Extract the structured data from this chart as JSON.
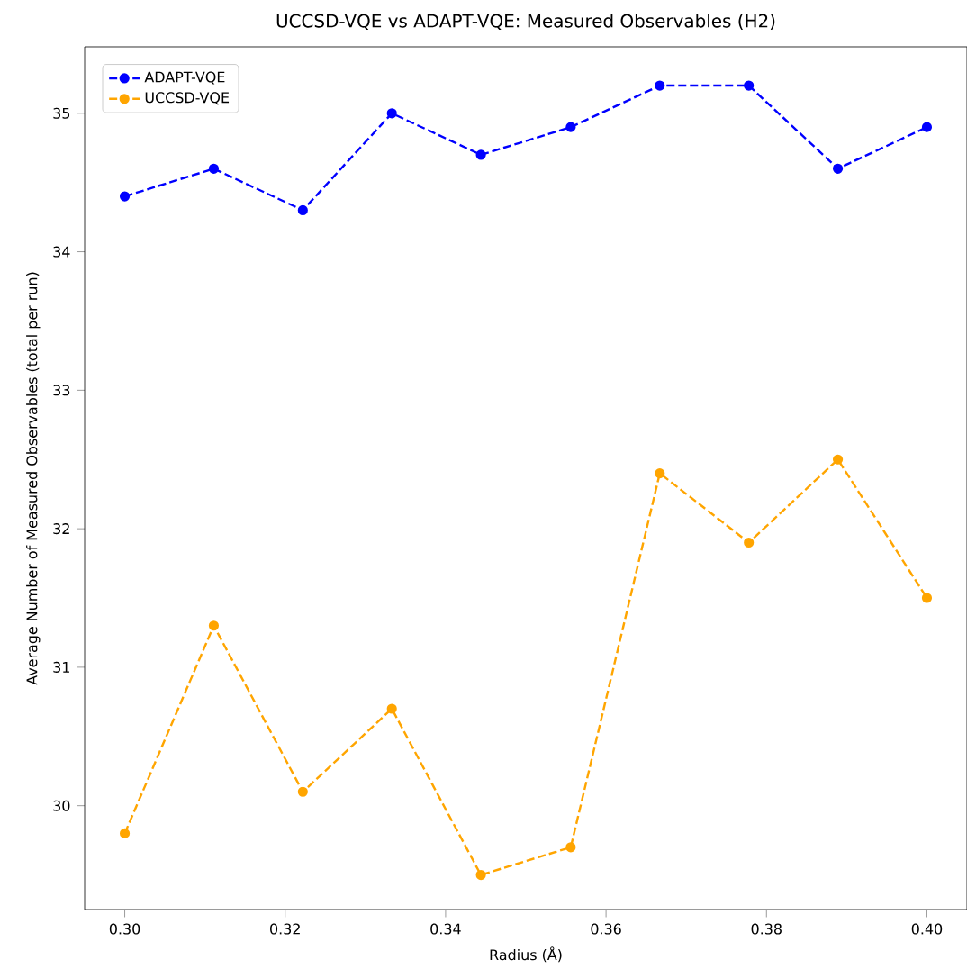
{
  "chart_data": {
    "type": "line",
    "title": "UCCSD-VQE vs ADAPT-VQE: Measured Observables (H2)",
    "xlabel": "Radius (Å)",
    "ylabel": "Average Number of Measured Observables (total per run)",
    "x": [
      0.3,
      0.3111,
      0.3222,
      0.3333,
      0.3444,
      0.3556,
      0.3667,
      0.3778,
      0.3889,
      0.4
    ],
    "series": [
      {
        "name": "ADAPT-VQE",
        "color": "#0000ff",
        "values": [
          34.4,
          34.6,
          34.3,
          35.0,
          34.7,
          34.9,
          35.2,
          35.2,
          34.6,
          34.9
        ]
      },
      {
        "name": "UCCSD-VQE",
        "color": "#ffa500",
        "values": [
          29.8,
          31.3,
          30.1,
          30.7,
          29.5,
          29.7,
          32.4,
          31.9,
          32.5,
          31.5
        ]
      }
    ],
    "xlim": [
      0.295,
      0.405
    ],
    "ylim": [
      29.25,
      35.48
    ],
    "xticks": [
      {
        "value": 0.3,
        "label": "0.30"
      },
      {
        "value": 0.32,
        "label": "0.32"
      },
      {
        "value": 0.34,
        "label": "0.34"
      },
      {
        "value": 0.36,
        "label": "0.36"
      },
      {
        "value": 0.38,
        "label": "0.38"
      },
      {
        "value": 0.4,
        "label": "0.40"
      }
    ],
    "yticks": [
      30,
      31,
      32,
      33,
      34,
      35
    ],
    "grid": false,
    "legend": "top left",
    "marker": "circle",
    "line_style": "dashed"
  }
}
